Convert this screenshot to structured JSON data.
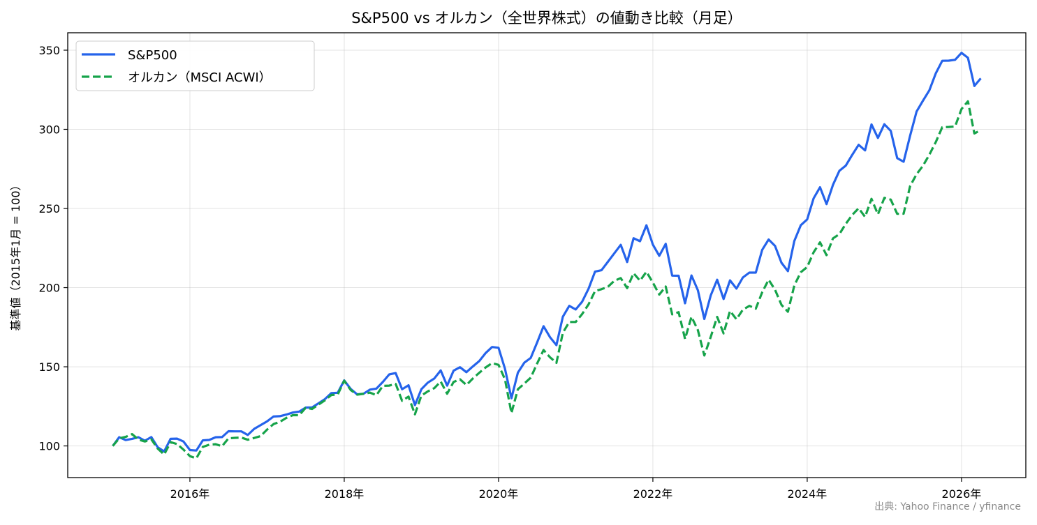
{
  "chart_data": {
    "type": "line",
    "title": "S&P500 vs オルカン（全世界株式）の値動き比較（月足）",
    "xlabel": "",
    "ylabel": "基準値（2015年1月 = 100）",
    "x_start": "2015-01",
    "x_range": [
      "2014-06",
      "2026-11"
    ],
    "ylim": [
      80,
      361
    ],
    "x_ticks": [
      {
        "label": "2016年",
        "date": "2016-01"
      },
      {
        "label": "2018年",
        "date": "2018-01"
      },
      {
        "label": "2020年",
        "date": "2020-01"
      },
      {
        "label": "2022年",
        "date": "2022-01"
      },
      {
        "label": "2024年",
        "date": "2024-01"
      },
      {
        "label": "2026年",
        "date": "2026-01"
      }
    ],
    "y_ticks": [
      100,
      150,
      200,
      250,
      300,
      350
    ],
    "grid": true,
    "legend": "top-left",
    "series": [
      {
        "name": "S&P500",
        "color": "#2563eb",
        "dash": "solid",
        "values": [
          100,
          105.5,
          103.7,
          104.5,
          105.5,
          103.3,
          105.6,
          99.1,
          96.5,
          104.5,
          104.6,
          102.8,
          97.4,
          97.1,
          103.5,
          103.8,
          105.5,
          105.6,
          109.3,
          109.2,
          109.2,
          106.9,
          110.8,
          113.1,
          115.5,
          118.6,
          118.8,
          119.8,
          121.1,
          121.7,
          124.2,
          124.3,
          126.9,
          129.6,
          133.4,
          133.6,
          141.4,
          136.0,
          132.6,
          133.0,
          135.6,
          136.2,
          140.4,
          145.2,
          146.0,
          135.8,
          138.3,
          125.8,
          135.8,
          140.0,
          142.6,
          147.7,
          138.1,
          147.5,
          149.7,
          146.6,
          150.2,
          153.6,
          158.7,
          162.5,
          162.0,
          148.8,
          130.1,
          146.3,
          152.6,
          155.6,
          165.4,
          175.6,
          168.7,
          163.7,
          181.6,
          188.5,
          186.2,
          191.1,
          199.4,
          210.1,
          211.0,
          216.3,
          221.7,
          227.0,
          216.2,
          231.2,
          229.3,
          239.4,
          227.2,
          220.1,
          227.7,
          207.6,
          207.5,
          190.1,
          207.7,
          198.3,
          180.2,
          195.1,
          205.0,
          192.8,
          204.6,
          199.4,
          206.4,
          209.5,
          209.5,
          223.9,
          230.4,
          226.3,
          215.7,
          210.4,
          229.5,
          239.4,
          243.1,
          256.4,
          263.4,
          252.8,
          264.9,
          273.8,
          277.1,
          283.9,
          290.2,
          286.7,
          303.1,
          294.6,
          303.2,
          299.0,
          281.8,
          279.5,
          296.0,
          311.2,
          318.1,
          324.7,
          335.4,
          343.3,
          343.4,
          343.9,
          348.3,
          345.2,
          327.4,
          332.2
        ]
      },
      {
        "name": "オルカン（MSCI ACWI）",
        "color": "#16a34a",
        "dash": "dashed",
        "values": [
          100,
          104.8,
          105.7,
          107.5,
          104.0,
          102.8,
          104.2,
          98.3,
          94.6,
          102.4,
          101.2,
          97.7,
          93.5,
          92.2,
          99.4,
          100.8,
          101.1,
          99.8,
          104.8,
          105.1,
          105.3,
          103.9,
          105.0,
          106.2,
          110.3,
          113.8,
          115.3,
          117.7,
          119.4,
          119.4,
          124.1,
          123.4,
          126.1,
          128.8,
          132.2,
          132.5,
          141.2,
          135.3,
          132.4,
          132.9,
          133.7,
          132.0,
          137.9,
          138.1,
          139.2,
          128.5,
          131.2,
          120.0,
          131.8,
          134.5,
          136.5,
          140.7,
          133.0,
          140.4,
          142.1,
          138.5,
          142.6,
          146.2,
          149.6,
          152.3,
          151.2,
          142.1,
          120.8,
          135.8,
          139.4,
          143.1,
          152.1,
          160.6,
          156.0,
          152.5,
          171.5,
          178.3,
          178.3,
          183.3,
          189.5,
          197.8,
          199.0,
          200.5,
          204.3,
          206.0,
          199.7,
          209.1,
          204.4,
          210.0,
          203.2,
          195.6,
          200.7,
          183.1,
          184.5,
          167.6,
          181.6,
          173.1,
          157.1,
          168.9,
          181.5,
          171.1,
          185.3,
          180.0,
          186.1,
          188.5,
          186.7,
          197.1,
          205.0,
          198.6,
          189.1,
          184.8,
          201.4,
          209.7,
          213.0,
          222.3,
          228.6,
          220.5,
          231.1,
          233.8,
          240.3,
          245.9,
          250.2,
          244.7,
          256.1,
          246.3,
          256.7,
          255.6,
          246.6,
          246.7,
          264.2,
          271.6,
          277.0,
          284.0,
          292.0,
          301.3,
          301.5,
          301.8,
          312.8,
          317.7,
          297.4,
          299.5
        ]
      }
    ],
    "source_note": "出典: Yahoo Finance / yfinance"
  }
}
